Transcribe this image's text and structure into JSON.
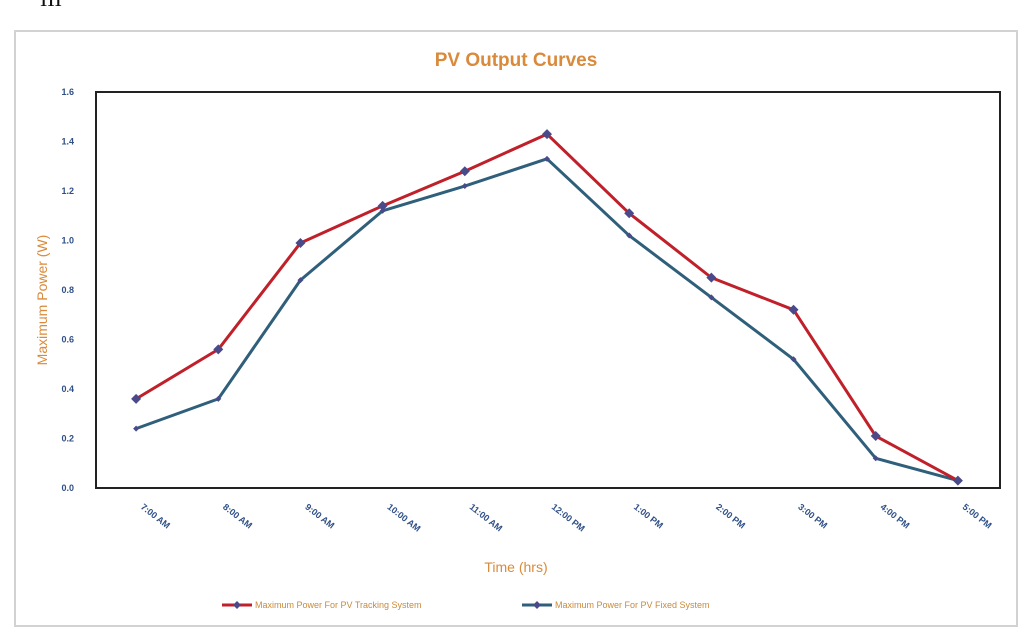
{
  "page": {
    "top_glyph": "III"
  },
  "chart_data": {
    "type": "line",
    "title": "PV Output Curves",
    "xlabel": "Time (hrs)",
    "ylabel": "Maximum Power (W)",
    "ylim": [
      0,
      1.6
    ],
    "yticks": [
      "0.0",
      "0.2",
      "0.4",
      "0.6",
      "0.8",
      "1.0",
      "1.2",
      "1.4",
      "1.6"
    ],
    "categories": [
      "7:00 AM",
      "8:00 AM",
      "9:00 AM",
      "10:00 AM",
      "11:00 AM",
      "12:00 PM",
      "1:00 PM",
      "2:00 PM",
      "3:00 PM",
      "4:00 PM",
      "5:00 PM"
    ],
    "grid": false,
    "legend_position": "bottom",
    "series": [
      {
        "name": "Maximum Power For PV Tracking System",
        "color": "#c0202a",
        "marker_color": "#4a4a8a",
        "values": [
          0.36,
          0.56,
          0.99,
          1.14,
          1.28,
          1.43,
          1.11,
          0.85,
          0.72,
          0.21,
          0.03
        ]
      },
      {
        "name": "Maximum Power For PV Fixed System",
        "color": "#2f5f7a",
        "marker_color": "#4a4a8a",
        "values": [
          0.24,
          0.36,
          0.84,
          1.12,
          1.22,
          1.33,
          1.02,
          0.77,
          0.52,
          0.12,
          0.03
        ]
      }
    ]
  }
}
